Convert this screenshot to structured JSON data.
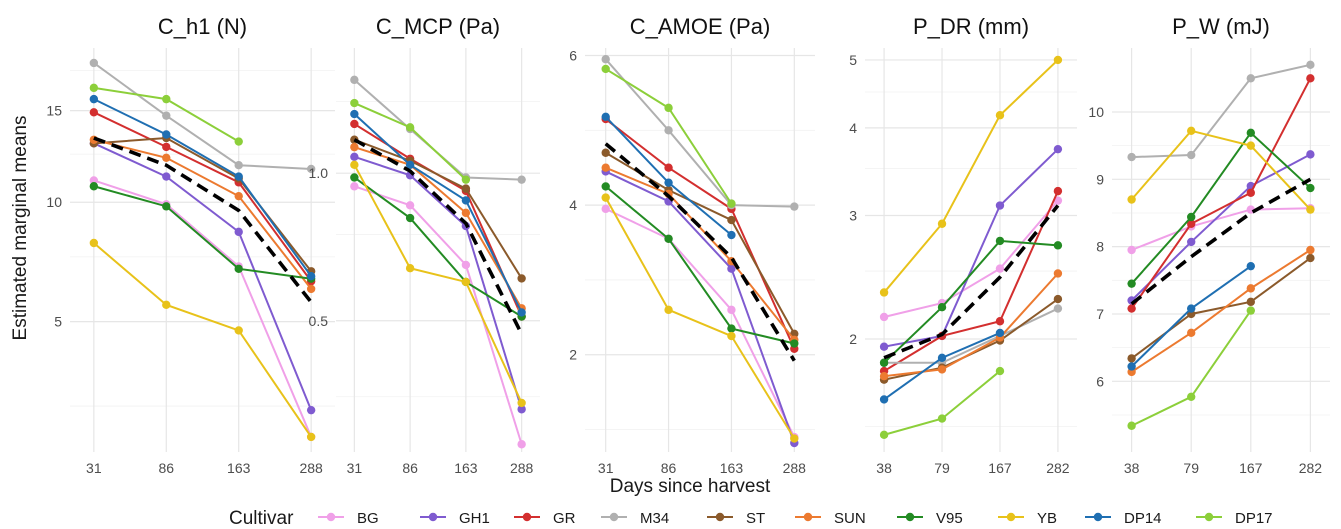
{
  "figure": {
    "y_label": "Estimated marginal means",
    "x_label": "Days since harvest"
  },
  "legend": {
    "title": "Cultivar"
  },
  "series_colors": {
    "BG": "#f0a0e8",
    "GH1": "#7f5bd0",
    "GR": "#d32f2f",
    "M34": "#b0b0b0",
    "ST": "#8b5a2b",
    "SUN": "#ec7a30",
    "V95": "#238b23",
    "YB": "#e8c21a",
    "DP14": "#1f6fb2",
    "DP17": "#8ccf3a",
    "mean": "#000000"
  },
  "chart_data": [
    {
      "type": "line",
      "title": "C_h1 (N)",
      "x": [
        "31",
        "86",
        "163",
        "288"
      ],
      "scale": "sqrt",
      "ylim": [
        1.5,
        19
      ],
      "yticks": [
        5,
        10,
        15
      ],
      "yminor": [
        2.5,
        7.5,
        12.5,
        17.5
      ],
      "series": [
        {
          "name": "BG",
          "values": [
            11.1,
            9.9,
            7.1,
            1.8
          ]
        },
        {
          "name": "GH1",
          "values": [
            13.1,
            11.3,
            8.6,
            2.4
          ]
        },
        {
          "name": "GR",
          "values": [
            14.9,
            12.9,
            11.0,
            6.5
          ]
        },
        {
          "name": "M34",
          "values": [
            18.0,
            14.7,
            11.9,
            11.7
          ]
        },
        {
          "name": "ST",
          "values": [
            13.1,
            13.4,
            11.2,
            6.9
          ]
        },
        {
          "name": "SUN",
          "values": [
            13.3,
            12.3,
            10.3,
            6.2
          ]
        },
        {
          "name": "V95",
          "values": [
            10.8,
            9.8,
            7.0,
            6.6
          ]
        },
        {
          "name": "YB",
          "values": [
            8.1,
            5.6,
            4.7,
            1.8
          ]
        },
        {
          "name": "DP14",
          "values": [
            15.7,
            13.6,
            11.3,
            6.7
          ]
        },
        {
          "name": "DP17",
          "values": [
            16.4,
            15.7,
            13.2,
            null
          ]
        }
      ],
      "mean": [
        13.4,
        11.9,
        9.6,
        5.7
      ]
    },
    {
      "type": "line",
      "title": "C_MCP (Pa)",
      "x": [
        "31",
        "86",
        "163",
        "288"
      ],
      "scale": "log",
      "ylim": [
        0.27,
        1.8
      ],
      "yticks": [
        0.5,
        1.0
      ],
      "yminor": [
        0.35,
        0.75,
        1.4
      ],
      "series": [
        {
          "name": "BG",
          "values": [
            0.94,
            0.86,
            0.65,
            0.28
          ]
        },
        {
          "name": "GH1",
          "values": [
            1.08,
            0.99,
            0.78,
            0.33
          ]
        },
        {
          "name": "GR",
          "values": [
            1.26,
            1.07,
            0.92,
            0.51
          ]
        },
        {
          "name": "M34",
          "values": [
            1.55,
            1.23,
            0.98,
            0.97
          ]
        },
        {
          "name": "ST",
          "values": [
            1.17,
            1.06,
            0.93,
            0.61
          ]
        },
        {
          "name": "SUN",
          "values": [
            1.13,
            1.04,
            0.83,
            0.53
          ]
        },
        {
          "name": "V95",
          "values": [
            0.98,
            0.81,
            0.6,
            0.51
          ]
        },
        {
          "name": "YB",
          "values": [
            1.04,
            0.64,
            0.6,
            0.34
          ]
        },
        {
          "name": "DP14",
          "values": [
            1.32,
            1.04,
            0.88,
            0.52
          ]
        },
        {
          "name": "DP17",
          "values": [
            1.39,
            1.24,
            0.97,
            null
          ]
        }
      ],
      "mean": [
        1.17,
        1.01,
        0.79,
        0.47
      ]
    },
    {
      "type": "line",
      "title": "C_AMOE (Pa)",
      "x": [
        "31",
        "86",
        "163",
        "288"
      ],
      "scale": "linear",
      "ylim": [
        0.7,
        6.1
      ],
      "yticks": [
        2,
        4,
        6
      ],
      "yminor": [
        1,
        3,
        5
      ],
      "series": [
        {
          "name": "BG",
          "values": [
            3.95,
            3.55,
            2.6,
            0.9
          ]
        },
        {
          "name": "GH1",
          "values": [
            4.45,
            4.05,
            3.15,
            0.82
          ]
        },
        {
          "name": "GR",
          "values": [
            5.15,
            4.5,
            3.95,
            2.08
          ]
        },
        {
          "name": "M34",
          "values": [
            5.95,
            5.0,
            4.0,
            3.98
          ]
        },
        {
          "name": "ST",
          "values": [
            4.7,
            4.2,
            3.8,
            2.28
          ]
        },
        {
          "name": "SUN",
          "values": [
            4.5,
            4.15,
            3.25,
            2.2
          ]
        },
        {
          "name": "V95",
          "values": [
            4.25,
            3.55,
            2.35,
            2.15
          ]
        },
        {
          "name": "YB",
          "values": [
            4.1,
            2.6,
            2.25,
            0.88
          ]
        },
        {
          "name": "DP14",
          "values": [
            5.18,
            4.3,
            3.6,
            null
          ]
        },
        {
          "name": "DP17",
          "values": [
            5.82,
            5.3,
            4.02,
            null
          ]
        }
      ],
      "mean": [
        4.82,
        4.12,
        3.3,
        1.92
      ]
    },
    {
      "type": "line",
      "title": "P_DR (mm)",
      "x": [
        "38",
        "79",
        "167",
        "282"
      ],
      "scale": "log",
      "ylim": [
        1.38,
        5.2
      ],
      "yticks": [
        2,
        3,
        4,
        5
      ],
      "yminor": [
        1.5,
        2.5,
        3.5,
        4.5
      ],
      "series": [
        {
          "name": "BG",
          "values": [
            2.15,
            2.25,
            2.52,
            3.15
          ]
        },
        {
          "name": "GH1",
          "values": [
            1.95,
            2.02,
            3.1,
            3.73
          ]
        },
        {
          "name": "GR",
          "values": [
            1.8,
            2.02,
            2.12,
            3.25
          ]
        },
        {
          "name": "M34",
          "values": [
            1.85,
            1.85,
            2.02,
            2.21
          ]
        },
        {
          "name": "ST",
          "values": [
            1.75,
            1.82,
            1.99,
            2.28
          ]
        },
        {
          "name": "SUN",
          "values": [
            1.77,
            1.81,
            2.01,
            2.48
          ]
        },
        {
          "name": "V95",
          "values": [
            1.85,
            2.22,
            2.76,
            2.72
          ]
        },
        {
          "name": "YB",
          "values": [
            2.33,
            2.92,
            4.17,
            5.0
          ]
        },
        {
          "name": "DP14",
          "values": [
            1.64,
            1.88,
            2.04,
            null
          ]
        },
        {
          "name": "DP17",
          "values": [
            1.46,
            1.54,
            1.8,
            null
          ]
        }
      ],
      "mean": [
        1.88,
        2.03,
        2.45,
        3.1
      ]
    },
    {
      "type": "line",
      "title": "P_W (mJ)",
      "x": [
        "38",
        "79",
        "167",
        "282"
      ],
      "scale": "linear",
      "ylim": [
        4.95,
        10.95
      ],
      "yticks": [
        6,
        7,
        8,
        9,
        10
      ],
      "yminor": [
        5.5,
        6.5,
        7.5,
        8.5,
        9.5
      ],
      "series": [
        {
          "name": "BG",
          "values": [
            7.95,
            8.3,
            8.55,
            8.57
          ]
        },
        {
          "name": "GH1",
          "values": [
            7.2,
            8.07,
            8.9,
            9.37
          ]
        },
        {
          "name": "GR",
          "values": [
            7.08,
            8.34,
            8.8,
            10.5
          ]
        },
        {
          "name": "M34",
          "values": [
            9.33,
            9.36,
            10.5,
            10.7
          ]
        },
        {
          "name": "ST",
          "values": [
            6.34,
            7.0,
            7.18,
            7.83
          ]
        },
        {
          "name": "SUN",
          "values": [
            6.14,
            6.72,
            7.38,
            7.95
          ]
        },
        {
          "name": "V95",
          "values": [
            7.45,
            8.44,
            9.69,
            8.87
          ]
        },
        {
          "name": "YB",
          "values": [
            8.7,
            9.72,
            9.5,
            8.55
          ]
        },
        {
          "name": "DP14",
          "values": [
            6.22,
            7.08,
            7.71,
            null
          ]
        },
        {
          "name": "DP17",
          "values": [
            5.34,
            5.77,
            7.05,
            null
          ]
        }
      ],
      "mean": [
        7.15,
        7.85,
        8.5,
        9.0
      ]
    }
  ]
}
